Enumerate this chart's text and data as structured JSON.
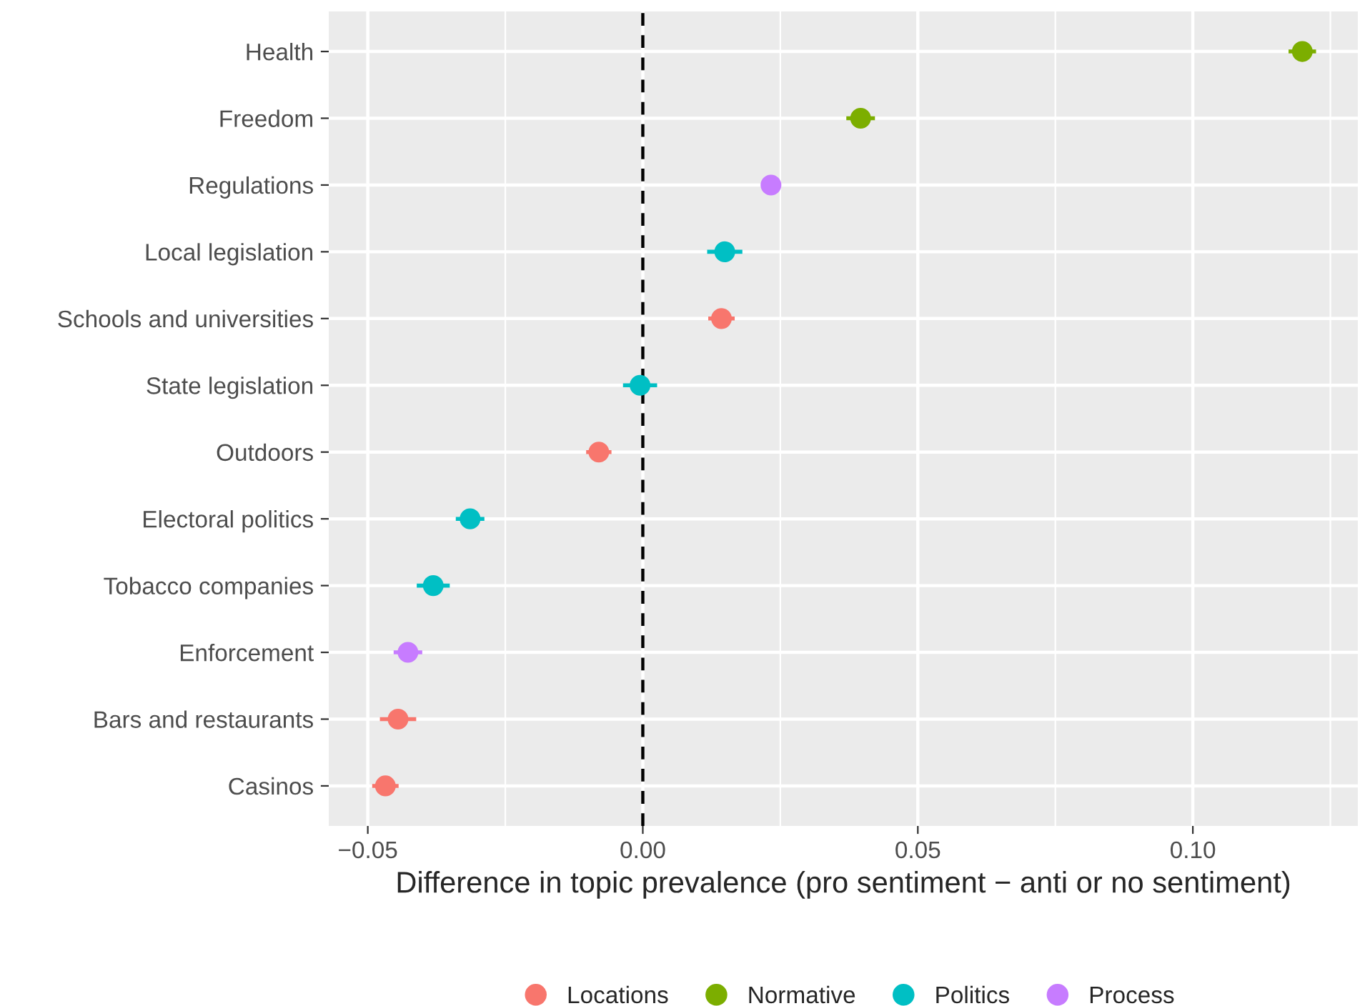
{
  "chart_data": {
    "type": "scatter",
    "orientation": "horizontal",
    "categories": [
      "Health",
      "Freedom",
      "Regulations",
      "Local legislation",
      "Schools and universities",
      "State legislation",
      "Outdoors",
      "Electoral politics",
      "Tobacco companies",
      "Enforcement",
      "Bars and restaurants",
      "Casinos"
    ],
    "xlabel": "Difference in topic prevalence (pro sentiment − anti or no sentiment)",
    "xlim": [
      -0.0571,
      0.13
    ],
    "xticks": [
      {
        "value": -0.05,
        "label": "−0.05"
      },
      {
        "value": 0.0,
        "label": "0.00"
      },
      {
        "value": 0.05,
        "label": "0.05"
      },
      {
        "value": 0.1,
        "label": "0.10"
      }
    ],
    "series": [
      {
        "name": "Locations",
        "color": "#f8766d",
        "values": [
          null,
          null,
          null,
          null,
          0.0143,
          null,
          -0.008,
          null,
          null,
          null,
          -0.0445,
          -0.0468
        ],
        "errors": [
          null,
          null,
          null,
          null,
          0.0024,
          null,
          0.0023,
          null,
          null,
          null,
          0.0033,
          0.0024
        ]
      },
      {
        "name": "Normative",
        "color": "#7cae00",
        "values": [
          0.1199,
          0.0396,
          null,
          null,
          null,
          null,
          null,
          null,
          null,
          null,
          null,
          null
        ],
        "errors": [
          0.0025,
          0.0026,
          null,
          null,
          null,
          null,
          null,
          null,
          null,
          null,
          null,
          null
        ]
      },
      {
        "name": "Politics",
        "color": "#00bfc4",
        "values": [
          null,
          null,
          null,
          0.0149,
          null,
          -0.0005,
          null,
          -0.0314,
          -0.0381,
          null,
          null,
          null
        ],
        "errors": [
          null,
          null,
          null,
          0.0032,
          null,
          0.0031,
          null,
          0.0026,
          0.003,
          null,
          null,
          null
        ]
      },
      {
        "name": "Process",
        "color": "#c77cff",
        "values": [
          null,
          null,
          0.0233,
          null,
          null,
          null,
          null,
          null,
          null,
          -0.0427,
          null,
          null
        ],
        "errors": [
          null,
          null,
          0.0015,
          null,
          null,
          null,
          null,
          null,
          null,
          0.0026,
          null,
          null
        ]
      }
    ],
    "ref_lines": [
      {
        "axis": "x",
        "value": 0.0,
        "color": "#000000",
        "line_style": "dashed"
      }
    ],
    "marker": "circle",
    "grid": true,
    "legend": "bottom"
  }
}
